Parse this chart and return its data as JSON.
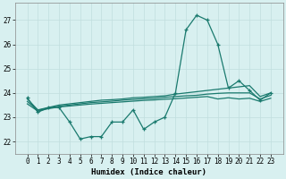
{
  "x": [
    0,
    1,
    2,
    3,
    4,
    5,
    6,
    7,
    8,
    9,
    10,
    11,
    12,
    13,
    14,
    15,
    16,
    17,
    18,
    19,
    20,
    21,
    22,
    23
  ],
  "y_main": [
    23.8,
    23.2,
    23.4,
    23.4,
    22.8,
    22.1,
    22.2,
    22.2,
    22.8,
    22.8,
    23.3,
    22.5,
    22.8,
    23.0,
    24.0,
    26.6,
    27.2,
    27.0,
    26.0,
    24.2,
    24.5,
    24.1,
    23.7,
    24.0
  ],
  "y_line1": [
    23.75,
    23.3,
    23.4,
    23.5,
    23.55,
    23.6,
    23.65,
    23.7,
    23.72,
    23.75,
    23.8,
    23.82,
    23.85,
    23.88,
    23.95,
    24.0,
    24.05,
    24.1,
    24.15,
    24.2,
    24.25,
    24.3,
    23.85,
    24.0
  ],
  "y_line2": [
    23.65,
    23.28,
    23.38,
    23.45,
    23.5,
    23.55,
    23.6,
    23.63,
    23.66,
    23.7,
    23.73,
    23.76,
    23.78,
    23.82,
    23.85,
    23.88,
    23.9,
    23.95,
    23.98,
    24.0,
    24.0,
    24.0,
    23.75,
    23.9
  ],
  "y_line3": [
    23.55,
    23.25,
    23.35,
    23.42,
    23.46,
    23.5,
    23.54,
    23.57,
    23.6,
    23.63,
    23.66,
    23.69,
    23.71,
    23.74,
    23.76,
    23.79,
    23.82,
    23.85,
    23.75,
    23.8,
    23.75,
    23.78,
    23.65,
    23.78
  ],
  "line_color": "#1a7a6e",
  "bg_color": "#d8f0f0",
  "grid_color": "#c0dede",
  "xlabel": "Humidex (Indice chaleur)",
  "ylim": [
    21.5,
    27.7
  ],
  "yticks": [
    22,
    23,
    24,
    25,
    26,
    27
  ],
  "xticks": [
    0,
    1,
    2,
    3,
    4,
    5,
    6,
    7,
    8,
    9,
    10,
    11,
    12,
    13,
    14,
    15,
    16,
    17,
    18,
    19,
    20,
    21,
    22,
    23
  ]
}
